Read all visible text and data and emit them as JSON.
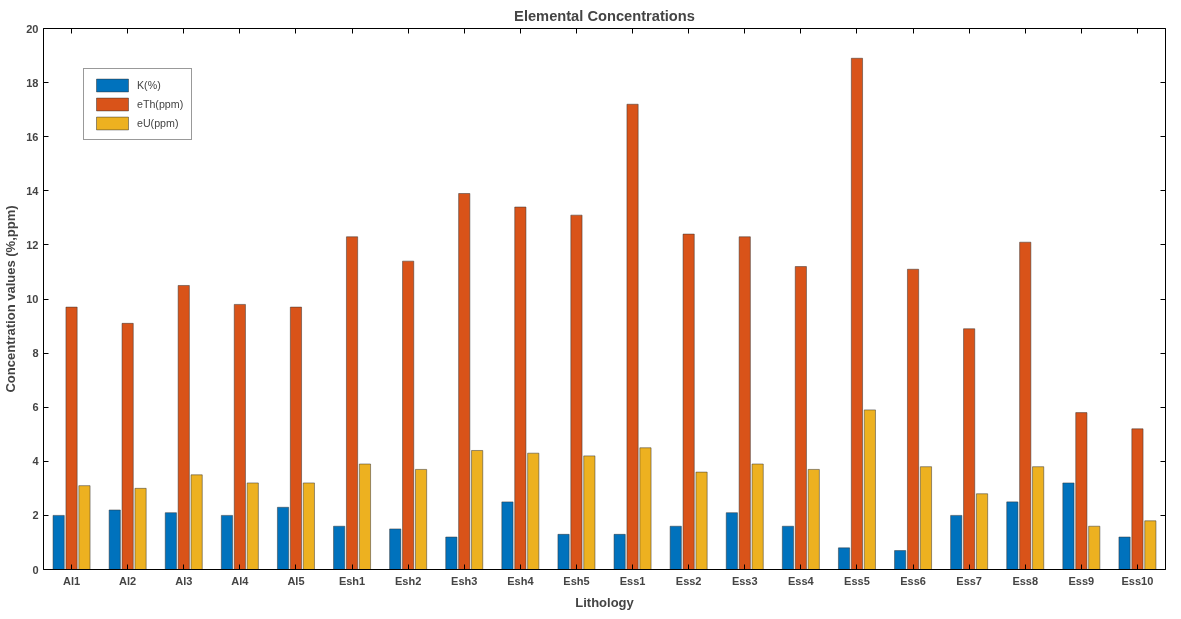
{
  "chart_data": {
    "type": "bar",
    "title": "Elemental Concentrations",
    "xlabel": "Lithology",
    "ylabel": "Concentration values (%,ppm)",
    "categories": [
      "Al1",
      "Al2",
      "Al3",
      "Al4",
      "Al5",
      "Esh1",
      "Esh2",
      "Esh3",
      "Esh4",
      "Esh5",
      "Ess1",
      "Ess2",
      "Ess3",
      "Ess4",
      "Ess5",
      "Ess6",
      "Ess7",
      "Ess8",
      "Ess9",
      "Ess10"
    ],
    "series": [
      {
        "name": "K(%)",
        "color": "#0072bd",
        "values": [
          2.0,
          2.2,
          2.1,
          2.0,
          2.3,
          1.6,
          1.5,
          1.2,
          2.5,
          1.3,
          1.3,
          1.6,
          2.1,
          1.6,
          0.8,
          0.7,
          2.0,
          2.5,
          3.2,
          1.2
        ]
      },
      {
        "name": "eTh(ppm)",
        "color": "#d95319",
        "values": [
          9.7,
          9.1,
          10.5,
          9.8,
          9.7,
          12.3,
          11.4,
          13.9,
          13.4,
          13.1,
          17.2,
          12.4,
          12.3,
          11.2,
          18.9,
          11.1,
          8.9,
          12.1,
          5.8,
          5.2
        ]
      },
      {
        "name": "eU(ppm)",
        "color": "#edb120",
        "values": [
          3.1,
          3.0,
          3.5,
          3.2,
          3.2,
          3.9,
          3.7,
          4.4,
          4.3,
          4.2,
          4.5,
          3.6,
          3.9,
          3.7,
          5.9,
          3.8,
          2.8,
          3.8,
          1.6,
          1.8
        ]
      }
    ],
    "ylim": [
      0,
      20
    ],
    "yticks": [
      0,
      2,
      4,
      6,
      8,
      10,
      12,
      14,
      16,
      18,
      20
    ],
    "grid": false,
    "legend": "top left"
  }
}
